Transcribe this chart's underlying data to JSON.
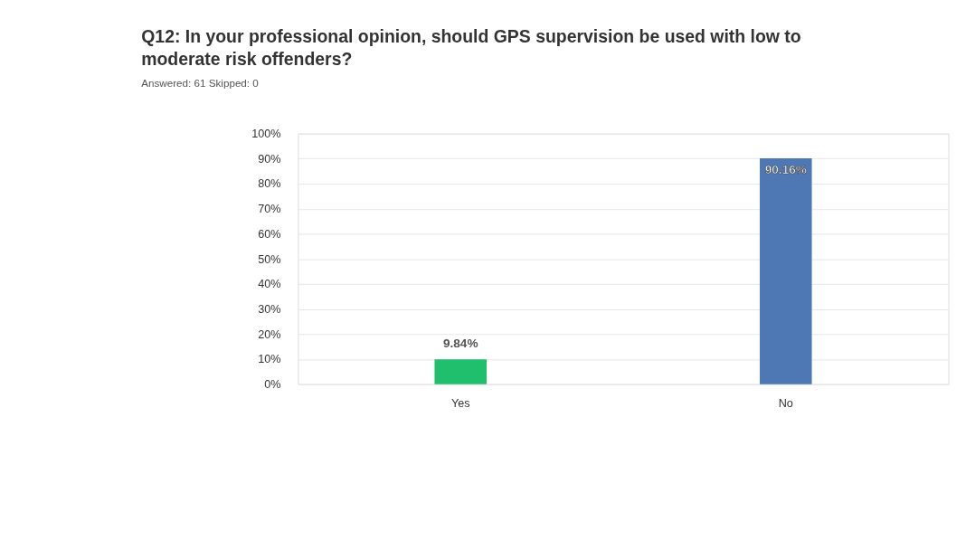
{
  "chart_data": {
    "type": "bar",
    "title": "Q12: In your professional opinion, should GPS supervision be used with low to moderate risk offenders?",
    "subtitle": "Answered: 61    Skipped: 0",
    "categories": [
      "Yes",
      "No"
    ],
    "values": [
      9.84,
      90.16
    ],
    "colors": [
      "#1fbf6e",
      "#4d78b3"
    ],
    "value_labels": [
      "9.84%",
      "90.16%"
    ],
    "ylim": [
      0,
      100
    ],
    "yticks": [
      {
        "value": 0,
        "label": "0%"
      },
      {
        "value": 10,
        "label": "10%"
      },
      {
        "value": 20,
        "label": "20%"
      },
      {
        "value": 30,
        "label": "30%"
      },
      {
        "value": 40,
        "label": "40%"
      },
      {
        "value": 50,
        "label": "50%"
      },
      {
        "value": 60,
        "label": "60%"
      },
      {
        "value": 70,
        "label": "70%"
      },
      {
        "value": 80,
        "label": "80%"
      },
      {
        "value": 90,
        "label": "90%"
      },
      {
        "value": 100,
        "label": "100%"
      }
    ],
    "grid": "y"
  }
}
